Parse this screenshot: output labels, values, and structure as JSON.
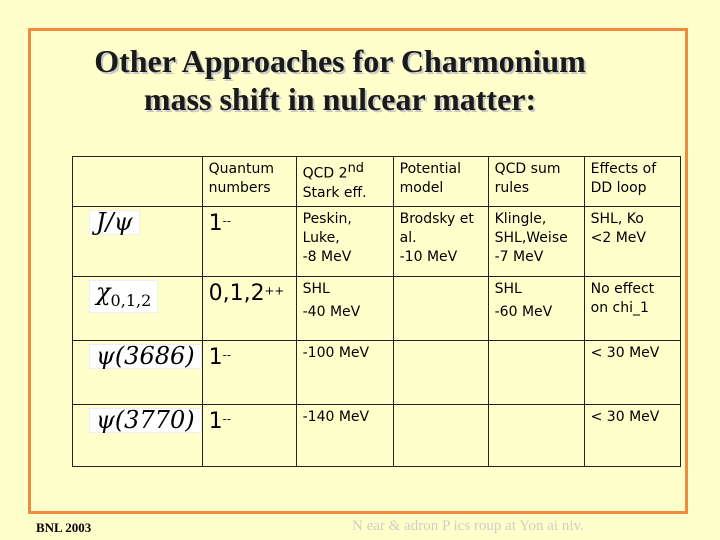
{
  "title": {
    "line1": "Other Approaches for Charmonium",
    "line2": "mass shift in nulcear matter:"
  },
  "table": {
    "header": {
      "quantum_line1": "Quantum",
      "quantum_line2": "numbers",
      "qcd2_line1": "QCD 2",
      "qcd2_sup": "nd",
      "qcd2_line2": "Stark eff.",
      "potential_line1": "Potential",
      "potential_line2": "model",
      "sum_line1": "QCD sum",
      "sum_line2": "rules",
      "dd_line1": "Effects of",
      "dd_line2": "DD loop"
    },
    "rows": [
      {
        "symbol": "J/ψ",
        "qn": "1",
        "qn_sup": "--",
        "qcd2": [
          "Peskin,",
          "Luke,",
          "-8 MeV"
        ],
        "potential": [
          "Brodsky et",
          "al.",
          "-10 MeV"
        ],
        "sum": [
          "Klingle,",
          "SHL,Weise",
          "-7 MeV"
        ],
        "dd": [
          "SHL, Ko",
          "<2 MeV"
        ]
      },
      {
        "symbol": "χ",
        "symbol_sub": "0,1,2",
        "qn": "0,1,2",
        "qn_sup": "++",
        "qcd2": [
          "SHL",
          "-40 MeV"
        ],
        "sum": [
          "SHL",
          "-60 MeV"
        ],
        "dd": [
          "No effect",
          "on chi_1"
        ]
      },
      {
        "symbol": "ψ(3686)",
        "qn": "1",
        "qn_sup": "--",
        "qcd2": [
          "-100 MeV"
        ],
        "dd": [
          "< 30 MeV"
        ]
      },
      {
        "symbol": "ψ(3770)",
        "qn": "1",
        "qn_sup": "--",
        "qcd2": [
          "-140 MeV"
        ],
        "dd": [
          "< 30 MeV"
        ]
      }
    ]
  },
  "footer": {
    "left": "BNL 2003",
    "right": "N   ear &   adron P    ics   roup at Yon ai   niv."
  }
}
